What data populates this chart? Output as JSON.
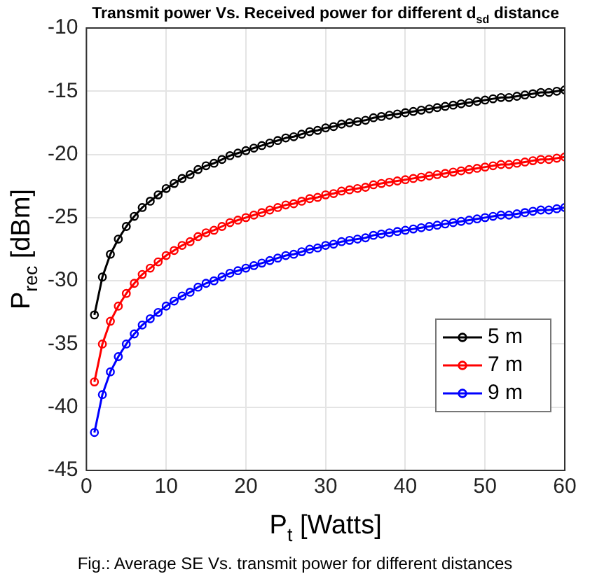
{
  "chart_data": {
    "type": "line",
    "title": "Transmit power Vs. Received power for different d$_{sd}$ distance",
    "xlabel": "P$_{t}$ [Watts]",
    "ylabel": "P$_{rec}$ [dBm]",
    "annotations": [
      "Fig.: Average SE Vs. transmit power for different distances"
    ],
    "x": [
      1,
      2,
      3,
      4,
      5,
      6,
      7,
      8,
      9,
      10,
      11,
      12,
      13,
      14,
      15,
      16,
      17,
      18,
      19,
      20,
      21,
      22,
      23,
      24,
      25,
      26,
      27,
      28,
      29,
      30,
      31,
      32,
      33,
      34,
      35,
      36,
      37,
      38,
      39,
      40,
      41,
      42,
      43,
      44,
      45,
      46,
      47,
      48,
      49,
      50,
      51,
      52,
      53,
      54,
      55,
      56,
      57,
      58,
      59,
      60
    ],
    "series": [
      {
        "name": "5 m",
        "color": "#000000",
        "values": [
          -32.7,
          -29.7,
          -27.9,
          -26.7,
          -25.7,
          -24.9,
          -24.2,
          -23.7,
          -23.2,
          -22.7,
          -22.3,
          -21.9,
          -21.6,
          -21.2,
          -20.9,
          -20.7,
          -20.4,
          -20.1,
          -19.9,
          -19.7,
          -19.5,
          -19.3,
          -19.1,
          -18.9,
          -18.7,
          -18.6,
          -18.4,
          -18.2,
          -18.1,
          -17.9,
          -17.8,
          -17.6,
          -17.5,
          -17.4,
          -17.3,
          -17.1,
          -17.0,
          -16.9,
          -16.8,
          -16.7,
          -16.6,
          -16.5,
          -16.4,
          -16.3,
          -16.2,
          -16.1,
          -16.0,
          -15.9,
          -15.8,
          -15.7,
          -15.6,
          -15.5,
          -15.5,
          -15.4,
          -15.3,
          -15.2,
          -15.1,
          -15.1,
          -15.0,
          -14.9
        ]
      },
      {
        "name": "7 m",
        "color": "#ff0000",
        "values": [
          -38.0,
          -35.0,
          -33.2,
          -32.0,
          -31.0,
          -30.2,
          -29.5,
          -29.0,
          -28.5,
          -28.0,
          -27.6,
          -27.2,
          -26.9,
          -26.5,
          -26.2,
          -26.0,
          -25.7,
          -25.4,
          -25.2,
          -25.0,
          -24.8,
          -24.6,
          -24.4,
          -24.2,
          -24.0,
          -23.9,
          -23.7,
          -23.5,
          -23.4,
          -23.2,
          -23.1,
          -22.9,
          -22.8,
          -22.7,
          -22.6,
          -22.4,
          -22.3,
          -22.2,
          -22.1,
          -22.0,
          -21.9,
          -21.8,
          -21.7,
          -21.6,
          -21.5,
          -21.4,
          -21.3,
          -21.2,
          -21.1,
          -21.0,
          -20.9,
          -20.8,
          -20.8,
          -20.7,
          -20.6,
          -20.5,
          -20.4,
          -20.4,
          -20.3,
          -20.2
        ]
      },
      {
        "name": "9 m",
        "color": "#0000ff",
        "values": [
          -42.0,
          -39.0,
          -37.2,
          -36.0,
          -35.0,
          -34.2,
          -33.5,
          -33.0,
          -32.5,
          -32.0,
          -31.6,
          -31.2,
          -30.9,
          -30.5,
          -30.2,
          -30.0,
          -29.7,
          -29.4,
          -29.2,
          -29.0,
          -28.8,
          -28.6,
          -28.4,
          -28.2,
          -28.0,
          -27.9,
          -27.7,
          -27.5,
          -27.4,
          -27.2,
          -27.1,
          -26.9,
          -26.8,
          -26.7,
          -26.6,
          -26.4,
          -26.3,
          -26.2,
          -26.1,
          -26.0,
          -25.9,
          -25.8,
          -25.7,
          -25.6,
          -25.5,
          -25.4,
          -25.3,
          -25.2,
          -25.1,
          -25.0,
          -24.9,
          -24.8,
          -24.8,
          -24.7,
          -24.6,
          -24.5,
          -24.4,
          -24.4,
          -24.3,
          -24.2
        ]
      }
    ],
    "xlim": [
      0,
      60
    ],
    "xticks": [
      0,
      10,
      20,
      30,
      40,
      50,
      60
    ],
    "ylim": [
      -45,
      -10
    ],
    "yticks": [
      -45,
      -40,
      -35,
      -30,
      -25,
      -20,
      -15,
      -10
    ],
    "grid": true,
    "legend": "bottom right",
    "marker": "circle",
    "line_style": "solid"
  }
}
